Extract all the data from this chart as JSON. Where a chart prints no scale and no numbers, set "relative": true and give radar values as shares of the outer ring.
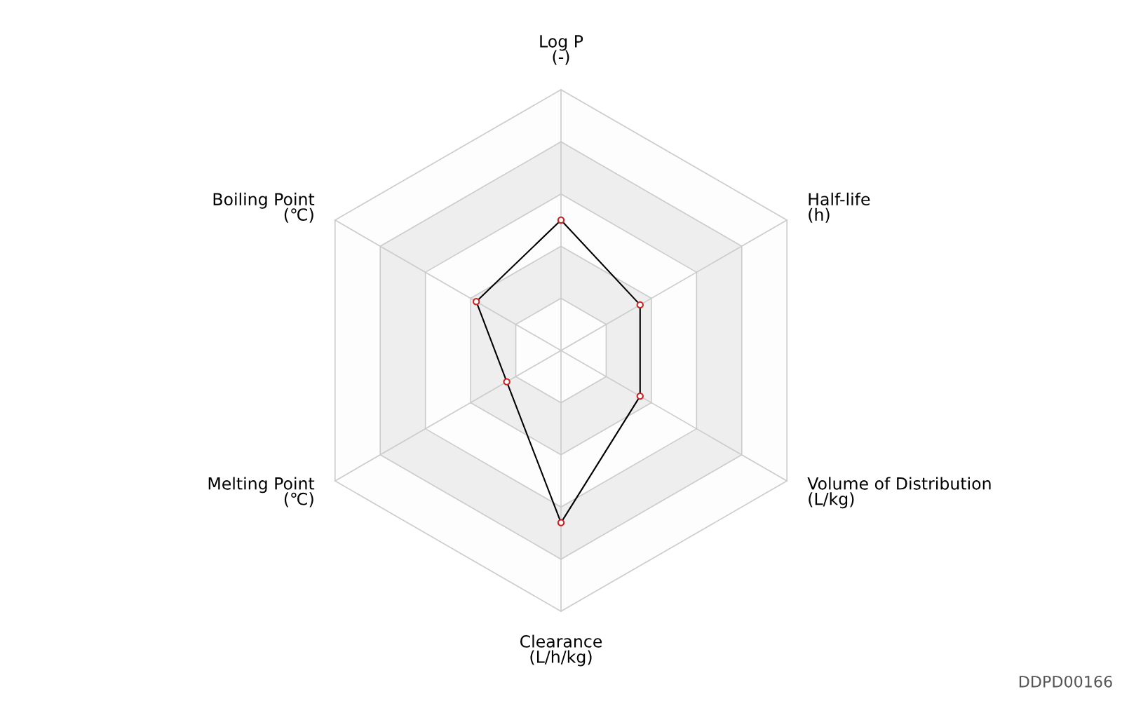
{
  "chart_data": {
    "type": "radar",
    "relative": true,
    "categories": [
      "Log P\n(-)",
      "Half-life\n(h)",
      "Volume of Distribution\n(L/kg)",
      "Clearance\n(L/h/kg)",
      "Melting Point\n(℃)",
      "Boiling Point\n(℃)"
    ],
    "series": [
      {
        "color": "#000000",
        "values": [
          0.5,
          0.35,
          0.35,
          0.66,
          0.24,
          0.375
        ]
      }
    ],
    "marker": "circle",
    "grid": true,
    "annotations": [
      "DDPD00166"
    ]
  }
}
